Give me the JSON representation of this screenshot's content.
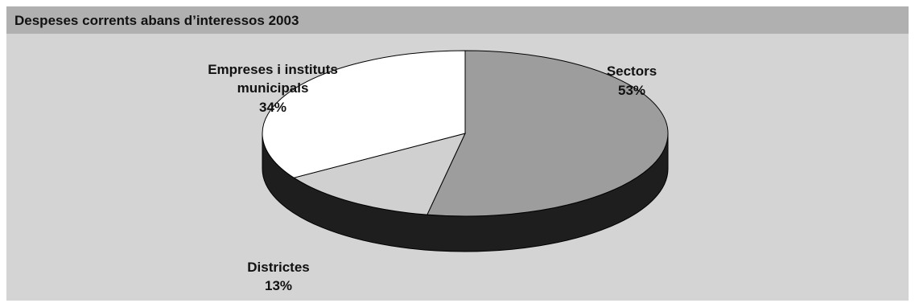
{
  "panel": {
    "title": "Despeses corrents abans d’interessos 2003"
  },
  "chart_data": {
    "type": "pie",
    "title": "Despeses corrents abans d’interessos 2003",
    "slices": [
      {
        "label_lines": [
          "Sectors"
        ],
        "percent_label": "53%",
        "value": 53,
        "color": "#9d9d9d"
      },
      {
        "label_lines": [
          "Districtes"
        ],
        "percent_label": "13%",
        "value": 13,
        "color": "#d0d0d0"
      },
      {
        "label_lines": [
          "Empreses i instituts",
          "municipals"
        ],
        "percent_label": "34%",
        "value": 34,
        "color": "#ffffff"
      }
    ],
    "side_color": "#1e1e1e",
    "outline_color": "#000000"
  }
}
